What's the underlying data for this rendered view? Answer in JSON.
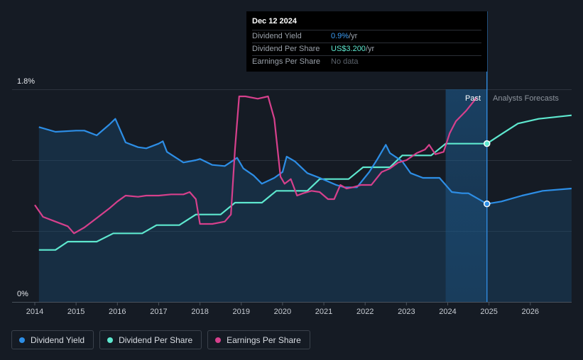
{
  "chart_data": {
    "type": "line",
    "title": "",
    "xlabel": "",
    "ylabel": "",
    "x_range": [
      2014.0,
      2027.0
    ],
    "x_ticks": [
      "2014",
      "2015",
      "2016",
      "2017",
      "2018",
      "2019",
      "2020",
      "2021",
      "2022",
      "2023",
      "2024",
      "2025",
      "2026"
    ],
    "y_range_pct": [
      0,
      1.8
    ],
    "y_tick_labels": {
      "top": "1.8%",
      "bottom": "0%"
    },
    "region_labels": {
      "past": "Past",
      "forecast": "Analysts Forecasts"
    },
    "forecast_start": 2024.95,
    "series": [
      {
        "name": "Dividend Yield",
        "color": "#2d8ee6",
        "unit": "%",
        "points": [
          [
            2014.1,
            1.48
          ],
          [
            2014.5,
            1.44
          ],
          [
            2015.0,
            1.45
          ],
          [
            2015.2,
            1.45
          ],
          [
            2015.5,
            1.41
          ],
          [
            2015.8,
            1.5
          ],
          [
            2015.95,
            1.55
          ],
          [
            2016.2,
            1.35
          ],
          [
            2016.5,
            1.31
          ],
          [
            2016.7,
            1.3
          ],
          [
            2017.0,
            1.34
          ],
          [
            2017.1,
            1.36
          ],
          [
            2017.2,
            1.27
          ],
          [
            2017.6,
            1.18
          ],
          [
            2017.9,
            1.2
          ],
          [
            2018.0,
            1.21
          ],
          [
            2018.3,
            1.16
          ],
          [
            2018.6,
            1.15
          ],
          [
            2018.9,
            1.22
          ],
          [
            2019.05,
            1.13
          ],
          [
            2019.3,
            1.07
          ],
          [
            2019.5,
            1.0
          ],
          [
            2019.8,
            1.05
          ],
          [
            2020.0,
            1.1
          ],
          [
            2020.1,
            1.23
          ],
          [
            2020.3,
            1.19
          ],
          [
            2020.6,
            1.09
          ],
          [
            2020.9,
            1.05
          ],
          [
            2021.3,
            0.99
          ],
          [
            2021.5,
            0.97
          ],
          [
            2021.8,
            0.97
          ],
          [
            2022.1,
            1.1
          ],
          [
            2022.3,
            1.21
          ],
          [
            2022.5,
            1.33
          ],
          [
            2022.6,
            1.26
          ],
          [
            2022.9,
            1.19
          ],
          [
            2023.1,
            1.09
          ],
          [
            2023.4,
            1.05
          ],
          [
            2023.8,
            1.05
          ],
          [
            2024.0,
            0.97
          ],
          [
            2024.1,
            0.93
          ],
          [
            2024.35,
            0.92
          ],
          [
            2024.5,
            0.92
          ],
          [
            2024.7,
            0.88
          ],
          [
            2024.95,
            0.83
          ],
          [
            2025.3,
            0.85
          ],
          [
            2025.8,
            0.9
          ],
          [
            2026.3,
            0.94
          ],
          [
            2027.0,
            0.96
          ]
        ]
      },
      {
        "name": "Dividend Per Share",
        "color": "#5ee8cf",
        "unit": "US$",
        "points": [
          [
            2014.1,
            0.44
          ],
          [
            2014.5,
            0.44
          ],
          [
            2014.8,
            0.51
          ],
          [
            2015.0,
            0.51
          ],
          [
            2015.5,
            0.51
          ],
          [
            2015.9,
            0.58
          ],
          [
            2016.2,
            0.58
          ],
          [
            2016.6,
            0.58
          ],
          [
            2016.95,
            0.65
          ],
          [
            2017.5,
            0.65
          ],
          [
            2017.9,
            0.74
          ],
          [
            2018.5,
            0.74
          ],
          [
            2018.85,
            0.84
          ],
          [
            2019.5,
            0.84
          ],
          [
            2019.85,
            0.94
          ],
          [
            2020.6,
            0.94
          ],
          [
            2020.9,
            1.04
          ],
          [
            2021.6,
            1.04
          ],
          [
            2021.95,
            1.14
          ],
          [
            2022.6,
            1.14
          ],
          [
            2022.9,
            1.24
          ],
          [
            2023.6,
            1.24
          ],
          [
            2023.95,
            1.34
          ],
          [
            2024.95,
            1.34
          ],
          [
            2025.3,
            1.42
          ],
          [
            2025.7,
            1.51
          ],
          [
            2026.2,
            1.55
          ],
          [
            2027.0,
            1.58
          ]
        ]
      },
      {
        "name": "Earnings Per Share",
        "color": "#d6408c",
        "unit": "",
        "points": [
          [
            2014.0,
            0.82
          ],
          [
            2014.2,
            0.72
          ],
          [
            2014.5,
            0.68
          ],
          [
            2014.8,
            0.64
          ],
          [
            2014.95,
            0.58
          ],
          [
            2015.2,
            0.63
          ],
          [
            2015.5,
            0.71
          ],
          [
            2015.8,
            0.79
          ],
          [
            2016.0,
            0.85
          ],
          [
            2016.2,
            0.9
          ],
          [
            2016.5,
            0.89
          ],
          [
            2016.7,
            0.9
          ],
          [
            2017.0,
            0.9
          ],
          [
            2017.3,
            0.91
          ],
          [
            2017.6,
            0.91
          ],
          [
            2017.75,
            0.93
          ],
          [
            2017.9,
            0.87
          ],
          [
            2018.0,
            0.66
          ],
          [
            2018.3,
            0.66
          ],
          [
            2018.6,
            0.68
          ],
          [
            2018.75,
            0.74
          ],
          [
            2018.85,
            1.3
          ],
          [
            2018.95,
            1.74
          ],
          [
            2019.1,
            1.74
          ],
          [
            2019.4,
            1.72
          ],
          [
            2019.65,
            1.74
          ],
          [
            2019.8,
            1.55
          ],
          [
            2019.95,
            1.06
          ],
          [
            2020.05,
            1.0
          ],
          [
            2020.2,
            1.04
          ],
          [
            2020.35,
            0.9
          ],
          [
            2020.5,
            0.92
          ],
          [
            2020.7,
            0.94
          ],
          [
            2020.9,
            0.93
          ],
          [
            2021.1,
            0.87
          ],
          [
            2021.25,
            0.87
          ],
          [
            2021.4,
            0.99
          ],
          [
            2021.55,
            0.96
          ],
          [
            2021.7,
            0.97
          ],
          [
            2021.9,
            0.99
          ],
          [
            2022.15,
            0.99
          ],
          [
            2022.4,
            1.1
          ],
          [
            2022.6,
            1.13
          ],
          [
            2022.8,
            1.18
          ],
          [
            2023.0,
            1.2
          ],
          [
            2023.25,
            1.26
          ],
          [
            2023.45,
            1.29
          ],
          [
            2023.55,
            1.33
          ],
          [
            2023.7,
            1.25
          ],
          [
            2023.9,
            1.27
          ],
          [
            2024.05,
            1.43
          ],
          [
            2024.2,
            1.53
          ],
          [
            2024.45,
            1.62
          ],
          [
            2024.7,
            1.73
          ]
        ]
      }
    ],
    "tooltip": {
      "date": "Dec 12 2024",
      "rows": [
        {
          "label": "Dividend Yield",
          "value": "0.9%",
          "unit": " /yr"
        },
        {
          "label": "Dividend Per Share",
          "value": "US$3.200",
          "unit": " /yr"
        },
        {
          "label": "Earnings Per Share",
          "value": "No data",
          "unit": ""
        }
      ]
    }
  },
  "legend": {
    "items": [
      {
        "label": "Dividend Yield",
        "color": "#2d8ee6"
      },
      {
        "label": "Dividend Per Share",
        "color": "#5ee8cf"
      },
      {
        "label": "Earnings Per Share",
        "color": "#d6408c"
      }
    ]
  }
}
